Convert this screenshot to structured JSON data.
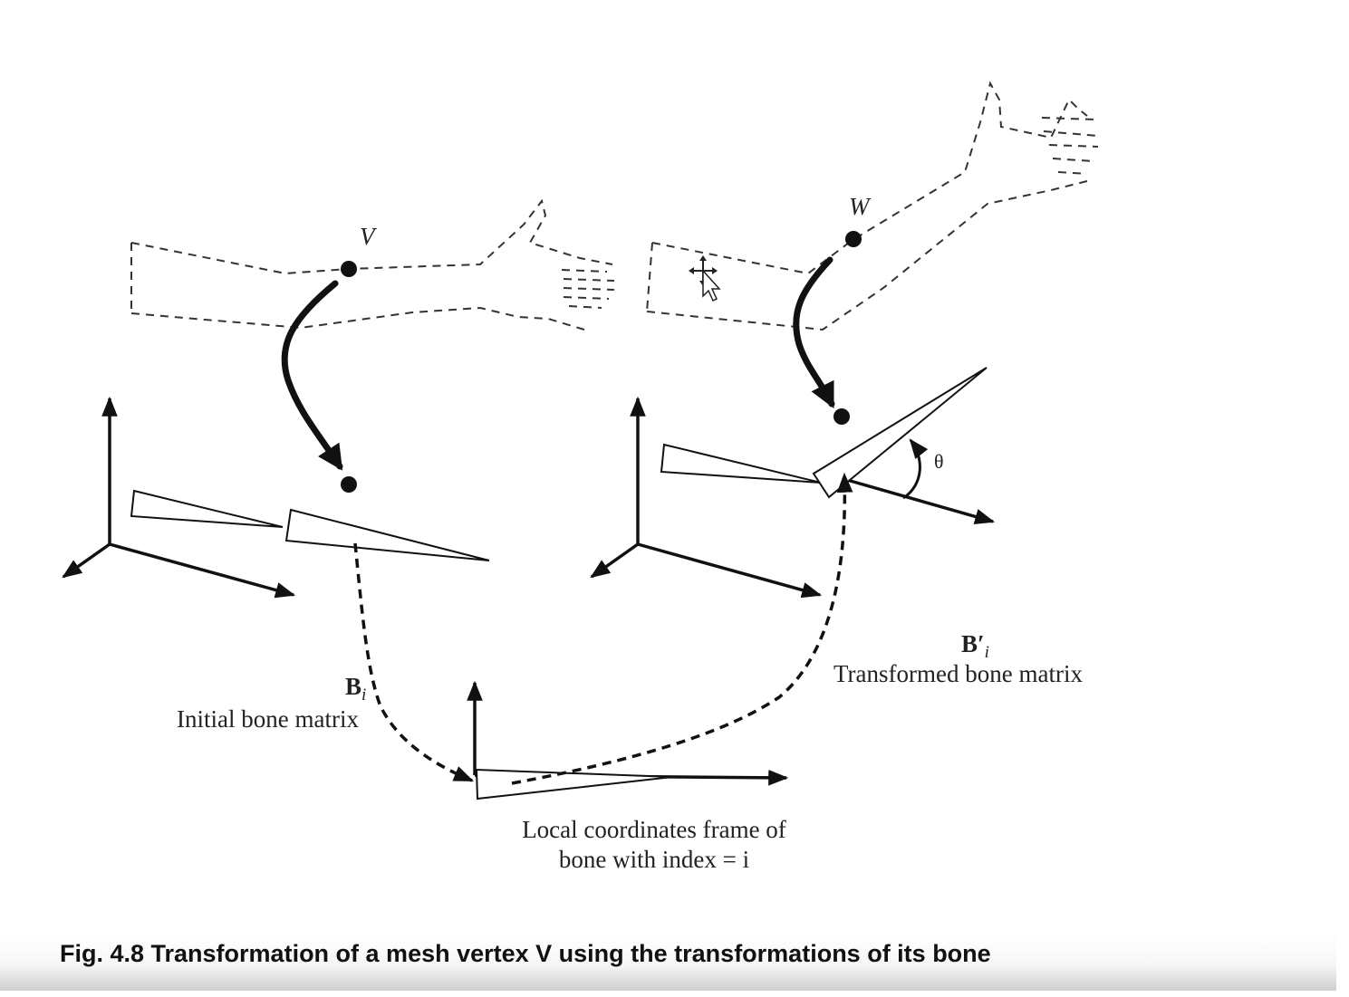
{
  "labels": {
    "vertex_v": "V",
    "vertex_w": "W",
    "theta": "θ",
    "bi_symbol": "B",
    "bi_sub": "i",
    "bi_desc": "Initial bone matrix",
    "bpi_symbol": "B′",
    "bpi_sub": "i",
    "bpi_desc": "Transformed bone matrix",
    "local_line1": "Local coordinates frame of",
    "local_line2": "bone with index = i"
  },
  "caption": "Fig. 4.8 Transformation of a mesh vertex V using the transformations of its bone",
  "icons": [
    "move-cursor-icon"
  ]
}
